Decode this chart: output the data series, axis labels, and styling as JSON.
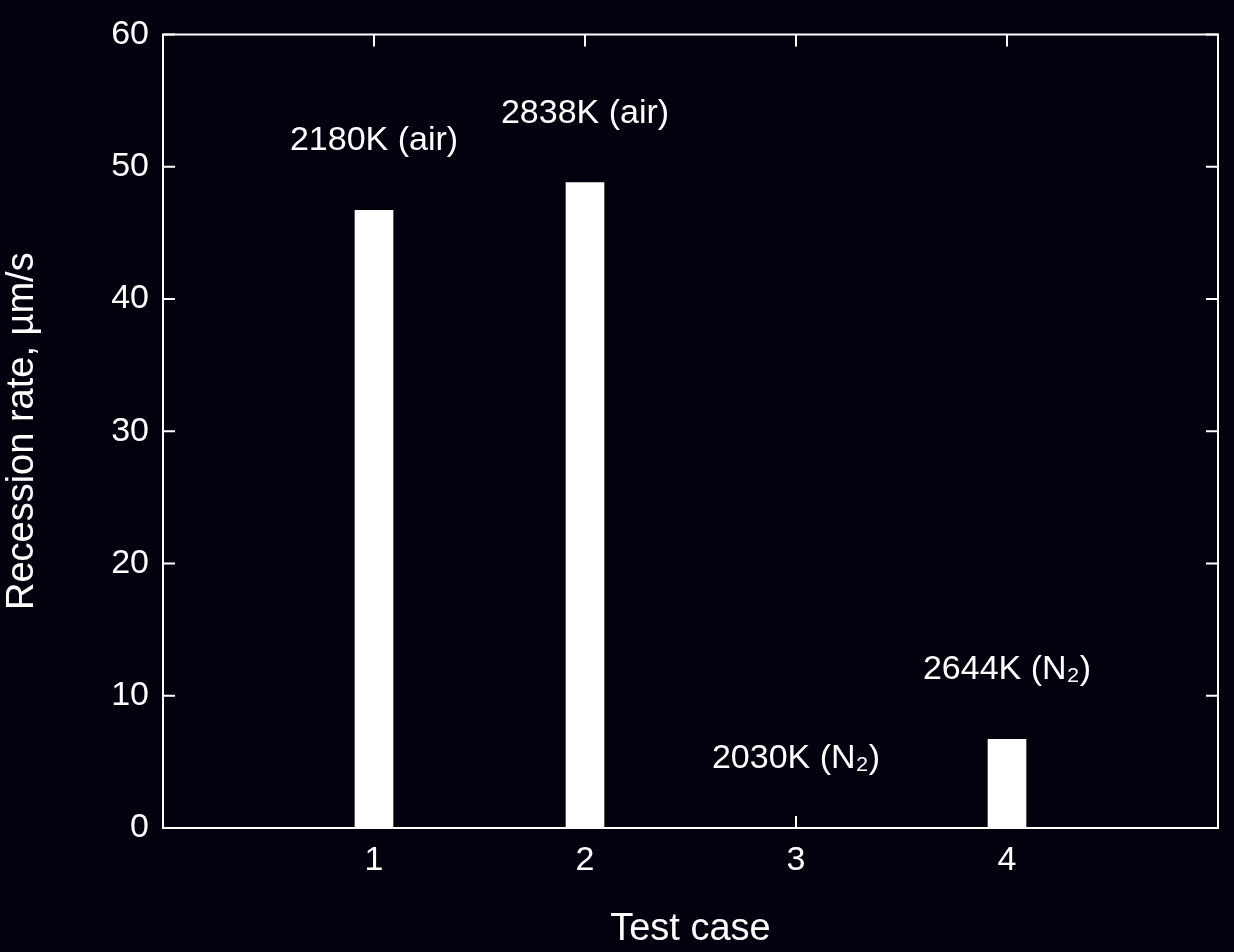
{
  "chart_data": {
    "type": "bar",
    "xlabel": "Test case",
    "ylabel": "Recession rate, µm/s",
    "x": [
      1,
      2,
      3,
      4
    ],
    "values": [
      46.7,
      48.8,
      0,
      6.7
    ],
    "color": "#ffffff",
    "xlim": [
      0,
      5
    ],
    "xticks": [
      1,
      2,
      3,
      4
    ],
    "ylim": [
      0,
      60
    ],
    "yticks": [
      0,
      10,
      20,
      30,
      40,
      50,
      60
    ],
    "grid": false,
    "legend": false,
    "annotations": [
      {
        "text": "2180K (air)",
        "x": 1,
        "y": 46.7
      },
      {
        "text": "2838K (air)",
        "x": 2,
        "y": 48.8
      },
      {
        "text": "2030K (N₂)",
        "x": 3,
        "y": 0
      },
      {
        "text": "2644K (N₂)",
        "x": 4,
        "y": 6.7
      }
    ]
  }
}
